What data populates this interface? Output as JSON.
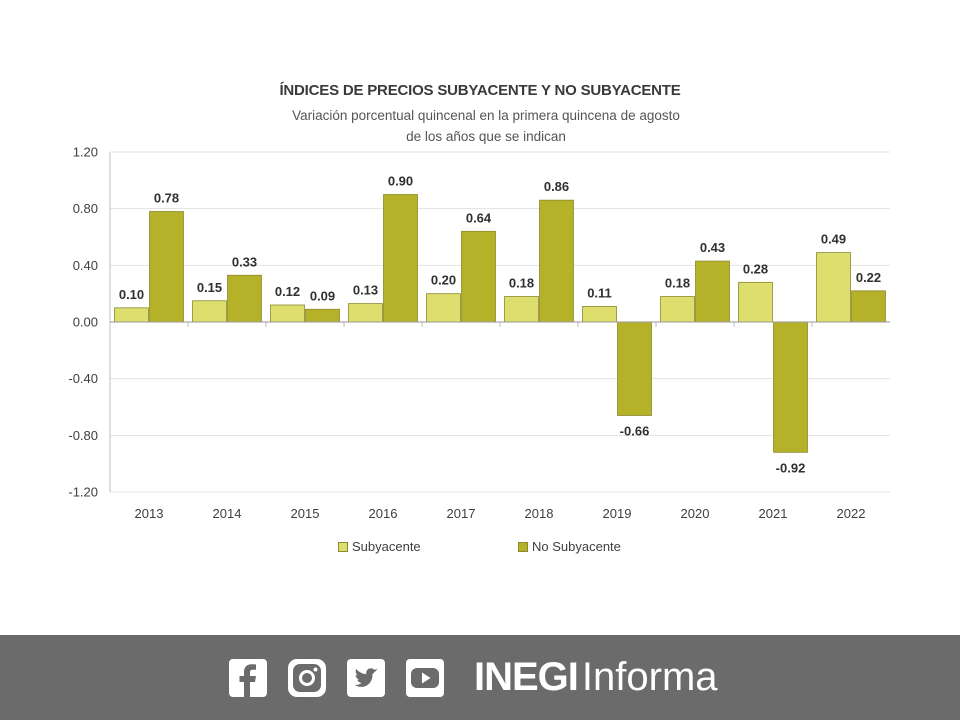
{
  "chart_data": {
    "type": "bar",
    "title": "ÍNDICES DE PRECIOS SUBYACENTE Y NO SUBYACENTE",
    "subtitle": "Variación porcentual quincenal en la primera quincena de agosto de los años que se indican",
    "categories": [
      "2013",
      "2014",
      "2015",
      "2016",
      "2017",
      "2018",
      "2019",
      "2020",
      "2021",
      "2022"
    ],
    "series": [
      {
        "name": "Subyacente",
        "color": "#dede6e",
        "values": [
          0.1,
          0.15,
          0.12,
          0.13,
          0.2,
          0.18,
          0.11,
          0.18,
          0.28,
          0.49
        ],
        "labels": [
          "0.10",
          "0.15",
          "0.12",
          "0.13",
          "0.20",
          "0.18",
          "0.11",
          "0.18",
          "0.28",
          "0.49"
        ]
      },
      {
        "name": "No Subyacente",
        "color": "#b5b22a",
        "values": [
          0.78,
          0.33,
          0.09,
          0.9,
          0.64,
          0.86,
          -0.66,
          0.43,
          -0.92,
          0.22
        ],
        "labels": [
          "0.78",
          "0.33",
          "0.09",
          "0.90",
          "0.64",
          "0.86",
          "-0.66",
          "0.43",
          "-0.92",
          "0.22"
        ]
      }
    ],
    "yticks": [
      1.2,
      0.8,
      0.4,
      0.0,
      -0.4,
      -0.8,
      -1.2
    ],
    "ytick_labels": [
      "1.20",
      "0.80",
      "0.40",
      "0.00",
      "-0.40",
      "-0.80",
      "-1.20"
    ],
    "ylim": [
      -1.2,
      1.2
    ],
    "grid": true,
    "legend_position": "bottom-left"
  },
  "footer": {
    "icons": [
      "facebook-icon",
      "instagram-icon",
      "twitter-icon",
      "youtube-icon"
    ],
    "brand_bold": "INEGI",
    "brand_light": "Informa",
    "background": "#6b6b6b"
  }
}
